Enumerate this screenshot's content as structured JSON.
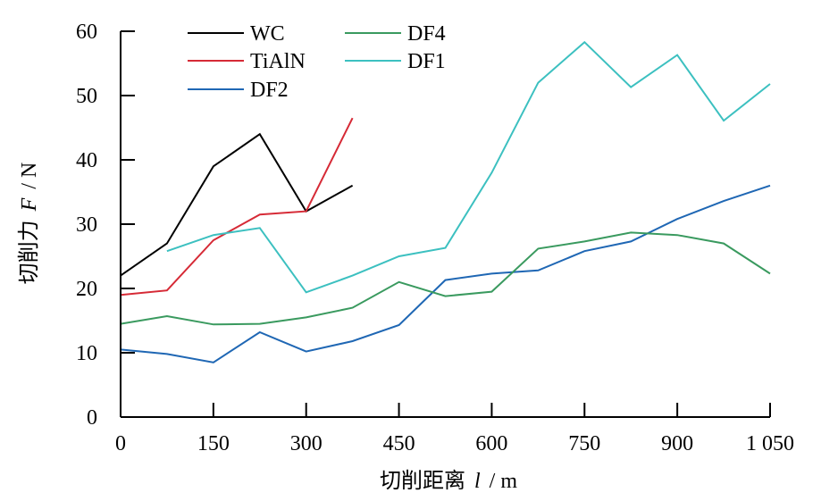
{
  "chart_data": {
    "type": "line",
    "title": "",
    "xlabel": "切削距离 l / m",
    "ylabel": "切削力 F / N",
    "xlabel_parts": {
      "prefix": "切削距离",
      "symbol": "l",
      "unit": "/ m"
    },
    "ylabel_parts": {
      "prefix": "切削力",
      "symbol": "F",
      "unit": "/ N"
    },
    "xlim": [
      0,
      1050
    ],
    "ylim": [
      0,
      60
    ],
    "xticks": [
      0,
      150,
      300,
      450,
      600,
      750,
      900,
      1050
    ],
    "xtick_labels": [
      "0",
      "150",
      "300",
      "450",
      "600",
      "750",
      "900",
      "1 050"
    ],
    "yticks": [
      0,
      10,
      20,
      30,
      40,
      50,
      60
    ],
    "ytick_labels": [
      "0",
      "10",
      "20",
      "30",
      "40",
      "50",
      "60"
    ],
    "grid": false,
    "legend": "top-left",
    "series": [
      {
        "name": "WC",
        "color": "#000000",
        "x": [
          0,
          75,
          150,
          225,
          300,
          375
        ],
        "y": [
          22,
          27,
          39,
          44,
          32,
          36
        ]
      },
      {
        "name": "TiAlN",
        "color": "#d62a36",
        "x": [
          0,
          75,
          150,
          225,
          300,
          375
        ],
        "y": [
          19,
          19.7,
          27.5,
          31.5,
          32,
          46.5
        ]
      },
      {
        "name": "DF2",
        "color": "#1f67b4",
        "x": [
          0,
          75,
          150,
          225,
          300,
          375,
          450,
          525,
          600,
          675,
          750,
          825,
          900,
          975,
          1050
        ],
        "y": [
          10.5,
          9.8,
          8.5,
          13.2,
          10.2,
          11.8,
          14.3,
          21.3,
          22.3,
          22.8,
          25.8,
          27.3,
          30.8,
          33.6,
          36
        ]
      },
      {
        "name": "DF4",
        "color": "#3a9a5f",
        "x": [
          0,
          75,
          150,
          225,
          300,
          375,
          450,
          525,
          600,
          675,
          750,
          825,
          900,
          975,
          1050
        ],
        "y": [
          14.5,
          15.7,
          14.4,
          14.5,
          15.5,
          17,
          21,
          18.8,
          19.5,
          26.2,
          27.3,
          28.7,
          28.3,
          27,
          22.3
        ]
      },
      {
        "name": "DF1",
        "color": "#3cc0c0",
        "x": [
          75,
          150,
          225,
          300,
          375,
          450,
          525,
          600,
          675,
          750,
          825,
          900,
          975,
          1050
        ],
        "y": [
          25.8,
          28.3,
          29.4,
          19.4,
          22,
          25,
          26.3,
          38,
          52,
          58.3,
          51.3,
          56.3,
          46.1,
          51.8
        ]
      }
    ]
  }
}
